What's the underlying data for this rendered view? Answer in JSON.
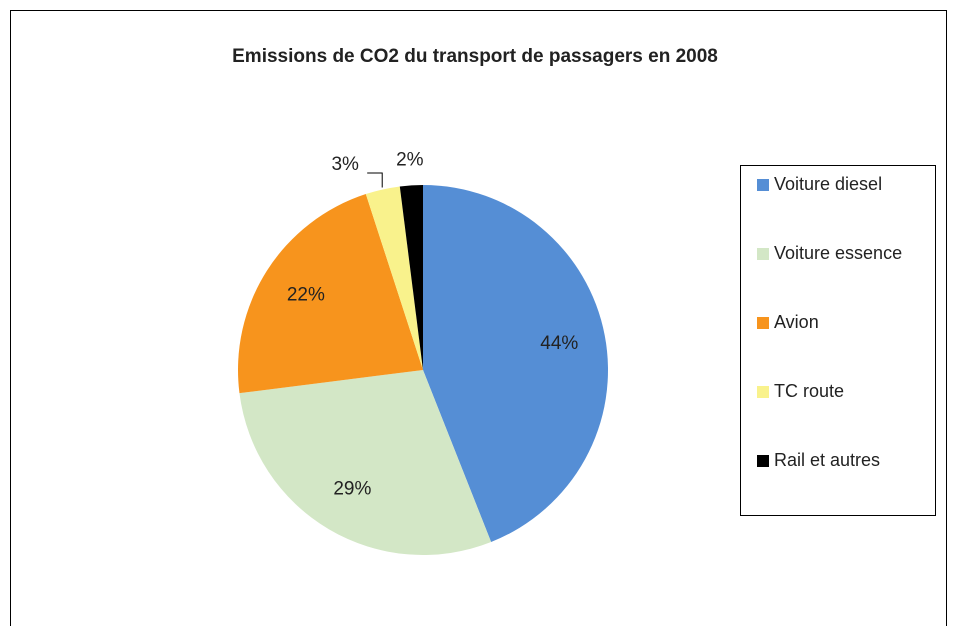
{
  "chart_data": {
    "type": "pie",
    "title": "Emissions de CO2 du transport de passagers en 2008",
    "series": [
      {
        "name": "Voiture diesel",
        "color": "#558ed5",
        "values": [
          44
        ],
        "value_labels": [
          "44%"
        ]
      },
      {
        "name": "Voiture essence",
        "color": "#d3e7c6",
        "values": [
          29
        ],
        "value_labels": [
          "29%"
        ]
      },
      {
        "name": "Avion",
        "color": "#f7941d",
        "values": [
          22
        ],
        "value_labels": [
          "22%"
        ]
      },
      {
        "name": "TC route",
        "color": "#f9f28c",
        "values": [
          3
        ],
        "value_labels": [
          "3%"
        ]
      },
      {
        "name": "Rail et autres",
        "color": "#000000",
        "values": [
          2
        ],
        "value_labels": [
          "2%"
        ]
      }
    ],
    "legend": "right"
  }
}
